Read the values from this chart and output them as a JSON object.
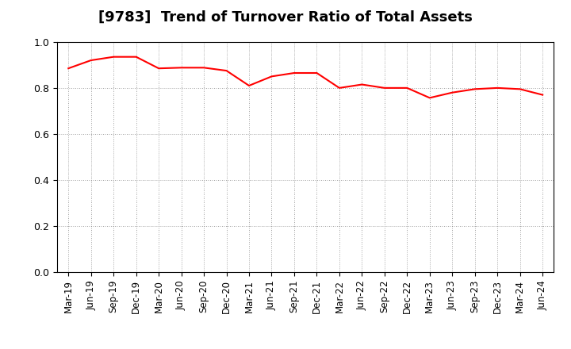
{
  "title": "[9783]  Trend of Turnover Ratio of Total Assets",
  "line_color": "#FF0000",
  "line_width": 1.5,
  "background_color": "#FFFFFF",
  "grid_color": "#888888",
  "ylim": [
    0.0,
    1.0
  ],
  "yticks": [
    0.0,
    0.2,
    0.4,
    0.6,
    0.8,
    1.0
  ],
  "x_labels": [
    "Mar-19",
    "Jun-19",
    "Sep-19",
    "Dec-19",
    "Mar-20",
    "Jun-20",
    "Sep-20",
    "Dec-20",
    "Mar-21",
    "Jun-21",
    "Sep-21",
    "Dec-21",
    "Mar-22",
    "Jun-22",
    "Sep-22",
    "Dec-22",
    "Mar-23",
    "Jun-23",
    "Sep-23",
    "Dec-23",
    "Mar-24",
    "Jun-24"
  ],
  "values": [
    0.885,
    0.92,
    0.935,
    0.935,
    0.885,
    0.888,
    0.888,
    0.875,
    0.81,
    0.85,
    0.865,
    0.865,
    0.8,
    0.815,
    0.8,
    0.8,
    0.757,
    0.78,
    0.795,
    0.8,
    0.795,
    0.77
  ],
  "title_fontsize": 13,
  "tick_fontsize": 8.5,
  "fig_width": 7.2,
  "fig_height": 4.4,
  "dpi": 100
}
